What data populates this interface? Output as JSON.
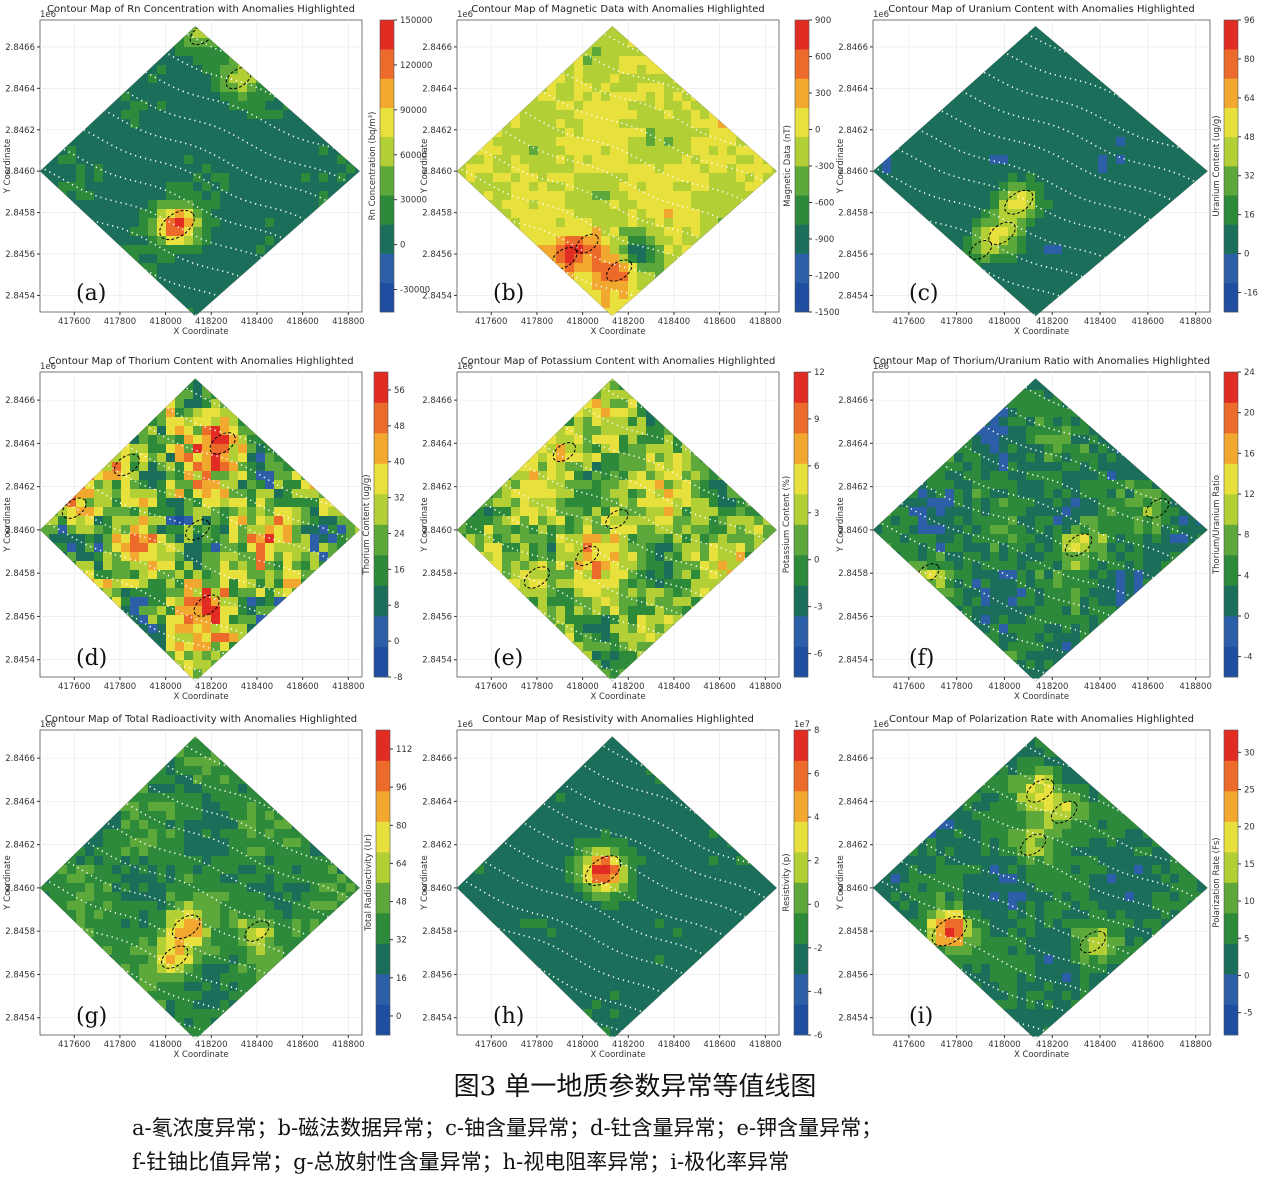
{
  "figure": {
    "title": "图3 单一地质参数异常等值线图",
    "caption_line1": "a-氡浓度异常；b-磁法数据异常；c-铀含量异常；d-钍含量异常；e-钾含量异常；",
    "caption_line2": "f-钍铀比值异常；g-总放射性含量异常；h-视电阻率异常；i-极化率异常"
  },
  "chart_data": [
    {
      "type": "heatmap",
      "panel_label": "(a)",
      "title": "Contour Map of Rn Concentration with Anomalies Highlighted",
      "xlabel": "X Coordinate",
      "ylabel": "Y Coordinate",
      "y_offset_label": "1e6",
      "xticks": [
        417600,
        417800,
        418000,
        418200,
        418400,
        418600,
        418800
      ],
      "yticks": [
        2.8454,
        2.8456,
        2.8458,
        2.846,
        2.8462,
        2.8464,
        2.8466
      ],
      "xlim": [
        417450,
        418860
      ],
      "ylim": [
        2.84532,
        2.84673
      ],
      "colorbar": {
        "label": "Rn Concentration (bq/m³)",
        "range": [
          -45000,
          150000
        ],
        "ticks": [
          -30000,
          0,
          30000,
          60000,
          90000,
          120000,
          150000
        ]
      },
      "background_level": 0.28,
      "noise": 0.02,
      "anomalies": [
        {
          "x": 418050,
          "y": 2.84574,
          "amplitude": 0.68
        },
        {
          "x": 418320,
          "y": 2.84645,
          "amplitude": 0.3
        },
        {
          "x": 418160,
          "y": 2.84666,
          "amplitude": 0.25
        }
      ]
    },
    {
      "type": "heatmap",
      "panel_label": "(b)",
      "title": "Contour Map of Magnetic Data with Anomalies Highlighted",
      "xlabel": "X Coordinate",
      "ylabel": "Y Coordinate",
      "y_offset_label": "1e6",
      "xticks": [
        417600,
        417800,
        418000,
        418200,
        418400,
        418600,
        418800
      ],
      "yticks": [
        2.8454,
        2.8456,
        2.8458,
        2.846,
        2.8462,
        2.8464,
        2.8466
      ],
      "xlim": [
        417450,
        418860
      ],
      "ylim": [
        2.84532,
        2.84673
      ],
      "colorbar": {
        "label": "Magnetic Data (nT)",
        "range": [
          -1500,
          900
        ],
        "ticks": [
          -1500,
          -1200,
          -900,
          -600,
          -300,
          0,
          300,
          600,
          900
        ]
      },
      "background_level": 0.6,
      "noise": 0.06,
      "anomalies": [
        {
          "x": 417920,
          "y": 2.84558,
          "amplitude": 0.3
        },
        {
          "x": 418020,
          "y": 2.84565,
          "amplitude": 0.18
        },
        {
          "x": 418160,
          "y": 2.84552,
          "amplitude": 0.3
        },
        {
          "x": 418240,
          "y": 2.8456,
          "amplitude": -0.4
        }
      ]
    },
    {
      "type": "heatmap",
      "panel_label": "(c)",
      "title": "Contour Map of Uranium Content with Anomalies Highlighted",
      "xlabel": "X Coordinate",
      "ylabel": "Y Coordinate",
      "y_offset_label": "1e6",
      "xticks": [
        417600,
        417800,
        418000,
        418200,
        418400,
        418600,
        418800
      ],
      "yticks": [
        2.8454,
        2.8456,
        2.8458,
        2.846,
        2.8462,
        2.8464,
        2.8466
      ],
      "xlim": [
        417450,
        418860
      ],
      "ylim": [
        2.84532,
        2.84673
      ],
      "colorbar": {
        "label": "Uranium Content (ug/g)",
        "range": [
          -24,
          96
        ],
        "ticks": [
          -16,
          0,
          16,
          32,
          48,
          64,
          80,
          96
        ]
      },
      "background_level": 0.23,
      "noise": 0.02,
      "anomalies": [
        {
          "x": 418060,
          "y": 2.84585,
          "amplitude": 0.42
        },
        {
          "x": 417990,
          "y": 2.8457,
          "amplitude": 0.35
        },
        {
          "x": 417900,
          "y": 2.84562,
          "amplitude": 0.18
        }
      ]
    },
    {
      "type": "heatmap",
      "panel_label": "(d)",
      "title": "Contour Map of Thorium Content with Anomalies Highlighted",
      "xlabel": "X Coordinate",
      "ylabel": "Y Coordinate",
      "y_offset_label": "1e6",
      "xticks": [
        417600,
        417800,
        418000,
        418200,
        418400,
        418600,
        418800
      ],
      "yticks": [
        2.8454,
        2.8456,
        2.8458,
        2.846,
        2.8462,
        2.8464,
        2.8466
      ],
      "xlim": [
        417450,
        418860
      ],
      "ylim": [
        2.84532,
        2.84673
      ],
      "colorbar": {
        "label": "Thorium Content (ug/g)",
        "range": [
          -8,
          60
        ],
        "ticks": [
          -8,
          0,
          8,
          16,
          24,
          32,
          40,
          48,
          56
        ]
      },
      "background_level": 0.5,
      "noise": 0.22,
      "anomalies": [
        {
          "x": 418060,
          "y": 2.84602,
          "amplitude": -0.3
        },
        {
          "x": 418140,
          "y": 2.846,
          "amplitude": 0.25
        },
        {
          "x": 418250,
          "y": 2.8464,
          "amplitude": 0.3
        },
        {
          "x": 417830,
          "y": 2.8463,
          "amplitude": 0.3
        },
        {
          "x": 418180,
          "y": 2.84565,
          "amplitude": 0.3
        },
        {
          "x": 417600,
          "y": 2.8461,
          "amplitude": 0.25
        }
      ]
    },
    {
      "type": "heatmap",
      "panel_label": "(e)",
      "title": "Contour Map of Potassium Content with Anomalies Highlighted",
      "xlabel": "X Coordinate",
      "ylabel": "Y Coordinate",
      "y_offset_label": "1e6",
      "xticks": [
        417600,
        417800,
        418000,
        418200,
        418400,
        418600,
        418800
      ],
      "yticks": [
        2.8454,
        2.8456,
        2.8458,
        2.846,
        2.8462,
        2.8464,
        2.8466
      ],
      "xlim": [
        417450,
        418860
      ],
      "ylim": [
        2.84532,
        2.84673
      ],
      "colorbar": {
        "label": "Potassium Content (%)",
        "range": [
          -7.5,
          12
        ],
        "ticks": [
          -6,
          -3,
          0,
          3,
          6,
          9,
          12
        ]
      },
      "background_level": 0.48,
      "noise": 0.14,
      "anomalies": [
        {
          "x": 417800,
          "y": 2.84578,
          "amplitude": 0.3
        },
        {
          "x": 418020,
          "y": 2.84588,
          "amplitude": 0.2
        },
        {
          "x": 417920,
          "y": 2.84636,
          "amplitude": 0.18
        },
        {
          "x": 418150,
          "y": 2.84605,
          "amplitude": 0.18
        }
      ]
    },
    {
      "type": "heatmap",
      "panel_label": "(f)",
      "title": "Contour Map of Thorium/Uranium Ratio with Anomalies Highlighted",
      "xlabel": "X Coordinate",
      "ylabel": "Y Coordinate",
      "y_offset_label": "1e6",
      "xticks": [
        417600,
        417800,
        418000,
        418200,
        418400,
        418600,
        418800
      ],
      "yticks": [
        2.8454,
        2.8456,
        2.8458,
        2.846,
        2.8462,
        2.8464,
        2.8466
      ],
      "xlim": [
        417450,
        418860
      ],
      "ylim": [
        2.84532,
        2.84673
      ],
      "colorbar": {
        "label": "Thorium/Uranium Ratio",
        "range": [
          -6,
          24
        ],
        "ticks": [
          -4,
          0,
          4,
          8,
          12,
          16,
          20,
          24
        ]
      },
      "background_level": 0.3,
      "noise": 0.09,
      "anomalies": [
        {
          "x": 418310,
          "y": 2.84593,
          "amplitude": 0.35
        },
        {
          "x": 418640,
          "y": 2.8461,
          "amplitude": 0.2
        },
        {
          "x": 417680,
          "y": 2.8458,
          "amplitude": 0.18
        }
      ]
    },
    {
      "type": "heatmap",
      "panel_label": "(g)",
      "title": "Contour Map of Total Radioactivity with Anomalies Highlighted",
      "xlabel": "X Coordinate",
      "ylabel": "Y Coordinate",
      "y_offset_label": "1e6",
      "xticks": [
        417600,
        417800,
        418000,
        418200,
        418400,
        418600,
        418800
      ],
      "yticks": [
        2.8454,
        2.8456,
        2.8458,
        2.846,
        2.8462,
        2.8464,
        2.8466
      ],
      "xlim": [
        417450,
        418860
      ],
      "ylim": [
        2.84532,
        2.84673
      ],
      "colorbar": {
        "label": "Total Radioactivity (Ur)",
        "range": [
          -8,
          120
        ],
        "ticks": [
          0,
          16,
          32,
          48,
          64,
          80,
          96,
          112
        ]
      },
      "background_level": 0.34,
      "noise": 0.07,
      "anomalies": [
        {
          "x": 418090,
          "y": 2.84582,
          "amplitude": 0.4
        },
        {
          "x": 418040,
          "y": 2.84568,
          "amplitude": 0.35
        },
        {
          "x": 418400,
          "y": 2.8458,
          "amplitude": 0.25
        }
      ]
    },
    {
      "type": "heatmap",
      "panel_label": "(h)",
      "title": "Contour Map of Resistivity with Anomalies Highlighted",
      "xlabel": "X Coordinate",
      "ylabel": "Y Coordinate",
      "y_offset_label": "1e6",
      "colorbar_offset_label": "1e7",
      "xticks": [
        417600,
        417800,
        418000,
        418200,
        418400,
        418600,
        418800
      ],
      "yticks": [
        2.8454,
        2.8456,
        2.8458,
        2.846,
        2.8462,
        2.8464,
        2.8466
      ],
      "xlim": [
        417450,
        418860
      ],
      "ylim": [
        2.84532,
        2.84673
      ],
      "colorbar": {
        "label": "Resistivity (p)",
        "range": [
          -6,
          8
        ],
        "ticks": [
          -6,
          -4,
          -2,
          0,
          2,
          4,
          6,
          8
        ]
      },
      "background_level": 0.28,
      "noise": 0.015,
      "anomalies": [
        {
          "x": 418090,
          "y": 2.84608,
          "amplitude": 0.7
        }
      ]
    },
    {
      "type": "heatmap",
      "panel_label": "(i)",
      "title": "Contour Map of Polarization Rate with Anomalies Highlighted",
      "xlabel": "X Coordinate",
      "ylabel": "Y Coordinate",
      "y_offset_label": "1e6",
      "xticks": [
        417600,
        417800,
        418000,
        418200,
        418400,
        418600,
        418800
      ],
      "yticks": [
        2.8454,
        2.8456,
        2.8458,
        2.846,
        2.8462,
        2.8464,
        2.8466
      ],
      "xlim": [
        417450,
        418860
      ],
      "ylim": [
        2.84532,
        2.84673
      ],
      "colorbar": {
        "label": "Polarization Rate (Fs)",
        "range": [
          -8,
          33
        ],
        "ticks": [
          -5,
          0,
          5,
          10,
          15,
          20,
          25,
          30
        ]
      },
      "background_level": 0.28,
      "noise": 0.06,
      "anomalies": [
        {
          "x": 417770,
          "y": 2.8458,
          "amplitude": 0.68
        },
        {
          "x": 418150,
          "y": 2.84645,
          "amplitude": 0.38
        },
        {
          "x": 418250,
          "y": 2.84635,
          "amplitude": 0.32
        },
        {
          "x": 418120,
          "y": 2.8462,
          "amplitude": 0.3
        },
        {
          "x": 418370,
          "y": 2.84575,
          "amplitude": 0.3
        }
      ]
    }
  ]
}
